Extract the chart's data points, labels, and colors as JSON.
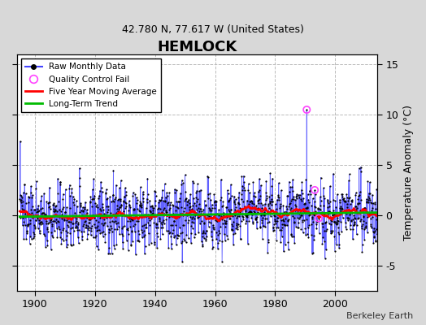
{
  "title": "HEMLOCK",
  "subtitle": "42.780 N, 77.617 W (United States)",
  "ylabel_right": "Temperature Anomaly (°C)",
  "credit": "Berkeley Earth",
  "year_start": 1895,
  "year_end": 2013,
  "ylim": [
    -7.5,
    16
  ],
  "yticks": [
    -5,
    0,
    5,
    10,
    15
  ],
  "fig_bg_color": "#d8d8d8",
  "plot_bg_color": "#ffffff",
  "line_color": "#4444ff",
  "dot_color": "#000000",
  "ma_color": "#ff0000",
  "trend_color": "#00bb00",
  "qc_color": "#ff44ff",
  "grid_color": "#bbbbbb",
  "legend_items": [
    "Raw Monthly Data",
    "Quality Control Fail",
    "Five Year Moving Average",
    "Long-Term Trend"
  ],
  "xticks": [
    1900,
    1920,
    1940,
    1960,
    1980,
    2000
  ],
  "seed": 137
}
